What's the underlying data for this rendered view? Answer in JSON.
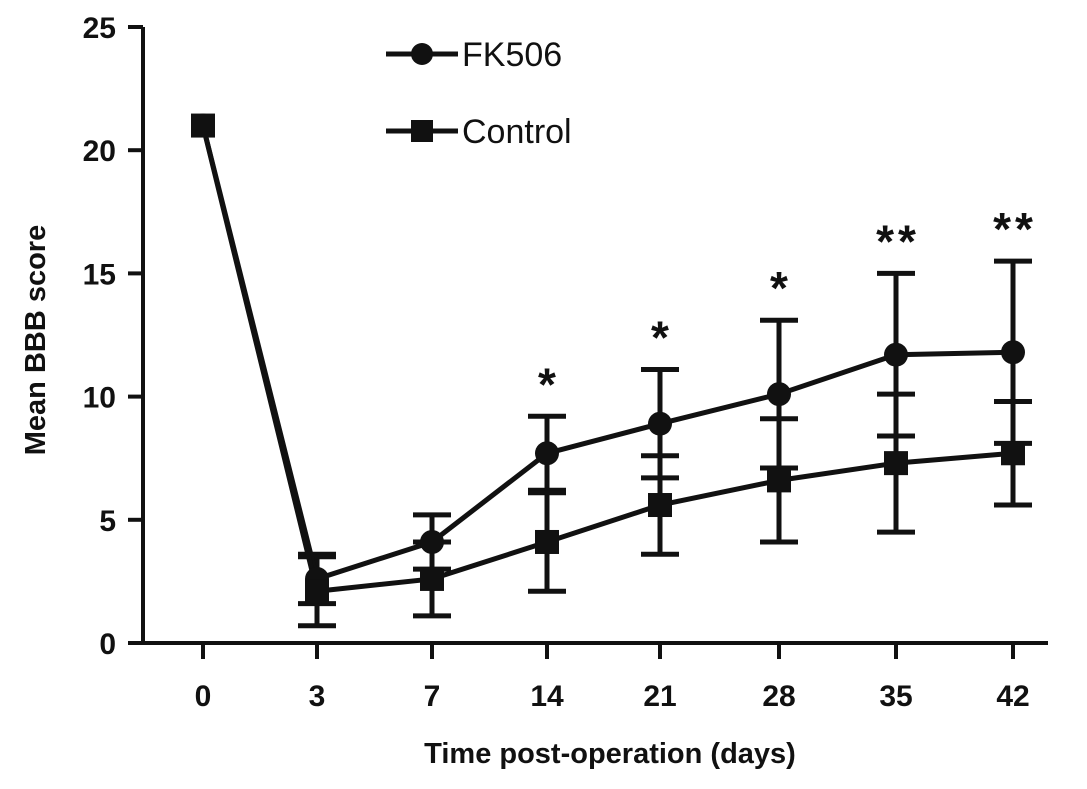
{
  "chart_data": {
    "type": "line",
    "xlabel": "Time post-operation (days)",
    "ylabel": "Mean BBB score",
    "categories": [
      "0",
      "3",
      "7",
      "14",
      "21",
      "28",
      "35",
      "42"
    ],
    "ylim": [
      0,
      25
    ],
    "yticks": [
      "0",
      "5",
      "10",
      "15",
      "20",
      "25"
    ],
    "legend_position": "top-center",
    "series": [
      {
        "name": "FK506",
        "marker": "circle",
        "values": [
          21,
          2.6,
          4.1,
          7.7,
          8.9,
          10.1,
          11.7,
          11.8
        ],
        "error": [
          0,
          1.0,
          1.1,
          1.5,
          2.2,
          3.0,
          3.3,
          3.7
        ]
      },
      {
        "name": "Control",
        "marker": "square",
        "values": [
          21,
          2.1,
          2.6,
          4.1,
          5.6,
          6.6,
          7.3,
          7.7
        ],
        "error": [
          0,
          1.4,
          1.5,
          2.0,
          2.0,
          2.5,
          2.8,
          2.1
        ]
      }
    ],
    "annotations": [
      "",
      "",
      "",
      "*",
      "*",
      "*",
      "**",
      "**"
    ]
  }
}
